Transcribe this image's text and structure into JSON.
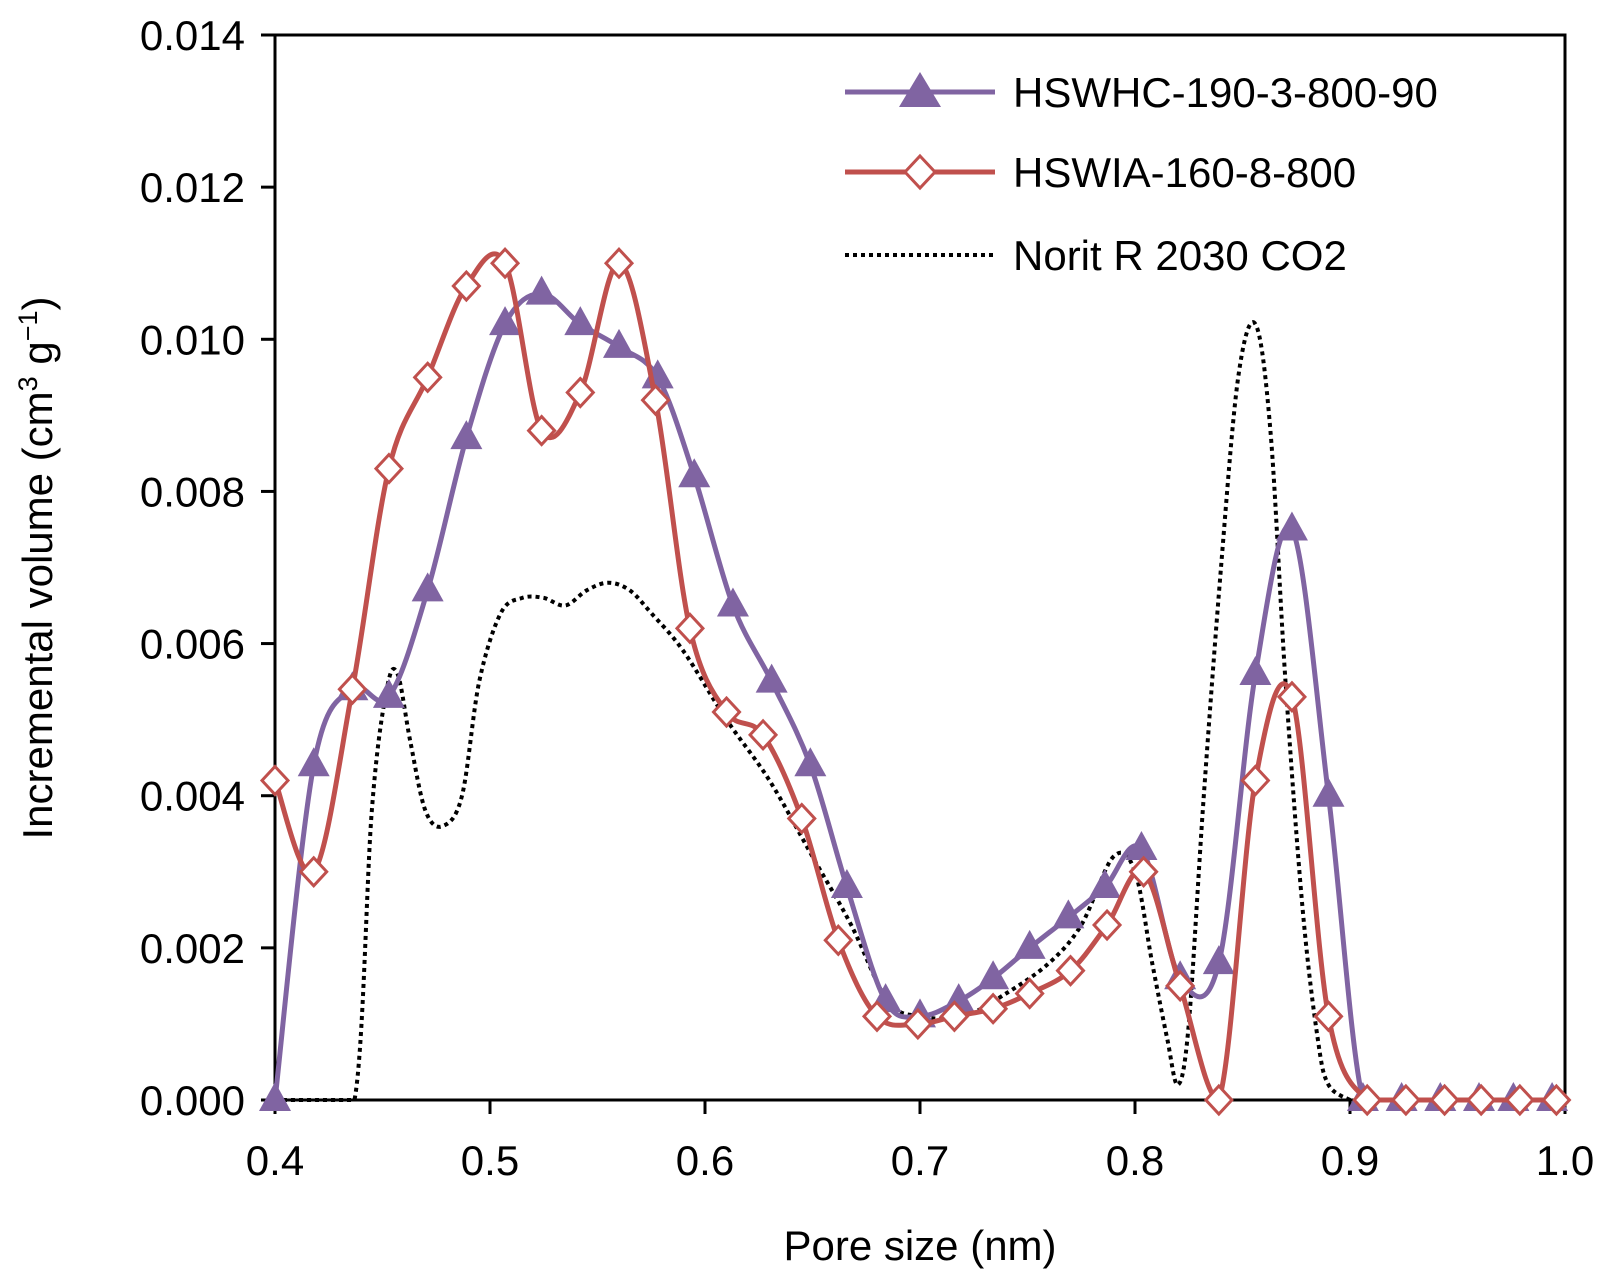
{
  "chart_data": {
    "type": "line",
    "title": "",
    "xlabel": "Pore size (nm)",
    "ylabel": {
      "main": "Incremental volume (cm",
      "sup1": "3",
      "mid": " g",
      "sup2": "−1",
      "end": ")"
    },
    "xlim": [
      0.4,
      1.0
    ],
    "ylim": [
      0,
      0.014
    ],
    "x_ticks": [
      "0.4",
      "0.5",
      "0.6",
      "0.7",
      "0.8",
      "0.9",
      "1.0"
    ],
    "y_ticks": [
      "0.000",
      "0.002",
      "0.004",
      "0.006",
      "0.008",
      "0.010",
      "0.012",
      "0.014"
    ],
    "grid": false,
    "legend_position": "top-right",
    "series": [
      {
        "name": "HSWHC-190-3-800-90",
        "color": "#8064A2",
        "marker": "triangle",
        "line_style": "solid",
        "x": [
          0.4,
          0.418,
          0.436,
          0.453,
          0.471,
          0.489,
          0.507,
          0.524,
          0.542,
          0.56,
          0.578,
          0.595,
          0.613,
          0.631,
          0.649,
          0.666,
          0.684,
          0.7,
          0.718,
          0.734,
          0.751,
          0.769,
          0.786,
          0.803,
          0.821,
          0.839,
          0.856,
          0.873,
          0.89,
          0.906,
          0.924,
          0.942,
          0.96,
          0.976,
          0.994
        ],
        "y": [
          0.0,
          0.0044,
          0.0054,
          0.0053,
          0.0067,
          0.0087,
          0.0102,
          0.0106,
          0.0102,
          0.0099,
          0.0095,
          0.0082,
          0.0065,
          0.0055,
          0.0044,
          0.0028,
          0.0013,
          0.0011,
          0.0013,
          0.0016,
          0.002,
          0.0024,
          0.0028,
          0.0033,
          0.0016,
          0.0018,
          0.0056,
          0.0075,
          0.004,
          0.0,
          0.0,
          0.0,
          0.0,
          0.0,
          0.0
        ]
      },
      {
        "name": "HSWIA-160-8-800",
        "color": "#C0504D",
        "marker": "diamond-open",
        "line_style": "solid",
        "x": [
          0.4,
          0.418,
          0.436,
          0.453,
          0.471,
          0.489,
          0.507,
          0.524,
          0.542,
          0.56,
          0.577,
          0.593,
          0.61,
          0.627,
          0.645,
          0.662,
          0.68,
          0.699,
          0.716,
          0.734,
          0.751,
          0.77,
          0.787,
          0.804,
          0.821,
          0.839,
          0.856,
          0.873,
          0.89,
          0.908,
          0.926,
          0.944,
          0.961,
          0.979,
          0.996
        ],
        "y": [
          0.0042,
          0.003,
          0.0054,
          0.0083,
          0.0095,
          0.0107,
          0.011,
          0.0088,
          0.0093,
          0.011,
          0.0092,
          0.0062,
          0.0051,
          0.0048,
          0.0037,
          0.0021,
          0.0011,
          0.001,
          0.0011,
          0.0012,
          0.0014,
          0.0017,
          0.0023,
          0.003,
          0.0015,
          0.0,
          0.0042,
          0.0053,
          0.0011,
          0.0,
          0.0,
          0.0,
          0.0,
          0.0,
          0.0
        ]
      },
      {
        "name": "Norit R 2030 CO2",
        "color": "#000000",
        "marker": "none",
        "line_style": "dotted",
        "x": [
          0.4,
          0.42,
          0.437,
          0.445,
          0.452,
          0.457,
          0.463,
          0.47,
          0.478,
          0.487,
          0.495,
          0.505,
          0.515,
          0.525,
          0.535,
          0.545,
          0.555,
          0.565,
          0.575,
          0.59,
          0.61,
          0.63,
          0.65,
          0.668,
          0.685,
          0.7,
          0.72,
          0.74,
          0.76,
          0.775,
          0.79,
          0.8,
          0.808,
          0.815,
          0.82,
          0.825,
          0.832,
          0.84,
          0.848,
          0.856,
          0.863,
          0.87,
          0.878,
          0.885,
          0.89,
          0.9
        ],
        "y": [
          0.0,
          0.0,
          0.0,
          0.0038,
          0.0054,
          0.0056,
          0.0047,
          0.0038,
          0.0036,
          0.004,
          0.0055,
          0.0064,
          0.0066,
          0.0066,
          0.0065,
          0.0067,
          0.0068,
          0.0067,
          0.0064,
          0.0059,
          0.005,
          0.0042,
          0.0032,
          0.0023,
          0.0013,
          0.0011,
          0.0011,
          0.0014,
          0.0018,
          0.0023,
          0.0032,
          0.003,
          0.0018,
          0.0008,
          0.0002,
          0.001,
          0.004,
          0.007,
          0.0095,
          0.0102,
          0.0088,
          0.0055,
          0.0025,
          0.0008,
          0.0002,
          0.0
        ]
      }
    ]
  }
}
